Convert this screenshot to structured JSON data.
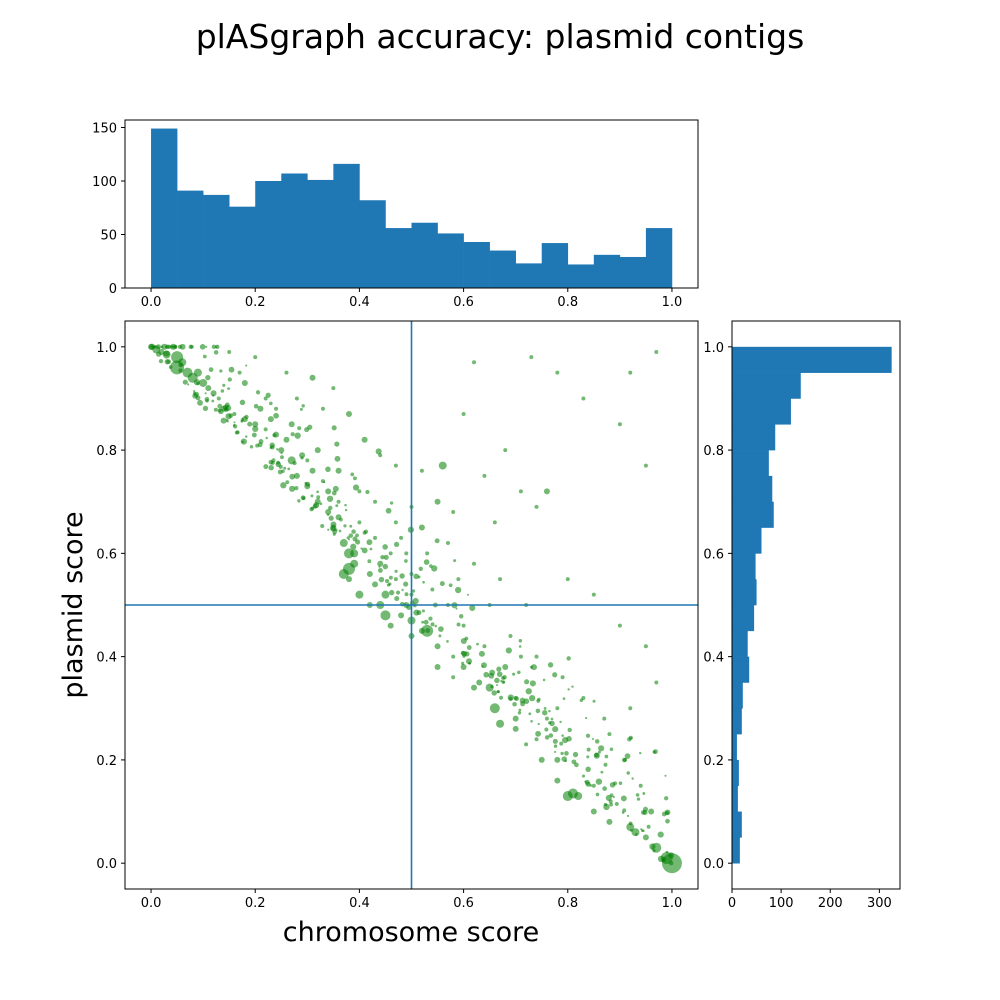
{
  "title": "plASgraph accuracy: plasmid contigs",
  "colors": {
    "hist": "#1f77b4",
    "scatter": "#008000",
    "threshold": "#1f77b4"
  },
  "chart_data": [
    {
      "type": "bar",
      "name": "chromosome-score-histogram",
      "bin_edges": [
        0.0,
        0.05,
        0.1,
        0.15,
        0.2,
        0.25,
        0.3,
        0.35,
        0.4,
        0.45,
        0.5,
        0.55,
        0.6,
        0.65,
        0.7,
        0.75,
        0.8,
        0.85,
        0.9,
        0.95,
        1.0
      ],
      "values": [
        149,
        91,
        87,
        76,
        100,
        107,
        101,
        116,
        82,
        56,
        61,
        51,
        43,
        35,
        23,
        42,
        22,
        31,
        29,
        56
      ],
      "xlim": [
        -0.05,
        1.05
      ],
      "ylim": [
        0,
        157
      ],
      "x_ticks": [
        0.0,
        0.2,
        0.4,
        0.6,
        0.8,
        1.0
      ],
      "x_tick_labels": [
        "0.0",
        "0.2",
        "0.4",
        "0.6",
        "0.8",
        "1.0"
      ],
      "y_ticks": [
        0,
        50,
        100,
        150
      ],
      "y_tick_labels": [
        "0",
        "50",
        "100",
        "150"
      ]
    },
    {
      "type": "scatter",
      "name": "score-scatter",
      "xlabel": "chromosome score",
      "ylabel": "plasmid score",
      "xlim": [
        -0.05,
        1.05
      ],
      "ylim": [
        -0.05,
        1.05
      ],
      "x_ticks": [
        0.0,
        0.2,
        0.4,
        0.6,
        0.8,
        1.0
      ],
      "x_tick_labels": [
        "0.0",
        "0.2",
        "0.4",
        "0.6",
        "0.8",
        "1.0"
      ],
      "y_ticks": [
        0.0,
        0.2,
        0.4,
        0.6,
        0.8,
        1.0
      ],
      "y_tick_labels": [
        "0.0",
        "0.2",
        "0.4",
        "0.6",
        "0.8",
        "1.0"
      ],
      "threshold_x": 0.5,
      "threshold_y": 0.5,
      "points": [
        [
          0.0,
          1.0,
          3
        ],
        [
          0.01,
          0.995,
          4
        ],
        [
          0.02,
          0.99,
          3
        ],
        [
          0.03,
          0.985,
          4
        ],
        [
          0.05,
          0.98,
          6
        ],
        [
          0.06,
          0.97,
          4
        ],
        [
          0.05,
          0.96,
          7
        ],
        [
          0.07,
          0.95,
          5
        ],
        [
          0.09,
          0.95,
          4
        ],
        [
          0.08,
          0.94,
          5
        ],
        [
          0.1,
          0.93,
          4
        ],
        [
          0.11,
          0.92,
          3
        ],
        [
          0.12,
          0.91,
          3
        ],
        [
          0.13,
          0.9,
          2
        ],
        [
          0.14,
          0.88,
          3
        ],
        [
          0.16,
          0.87,
          2
        ],
        [
          0.18,
          0.86,
          3
        ],
        [
          0.2,
          0.85,
          3
        ],
        [
          0.22,
          0.84,
          2
        ],
        [
          0.24,
          0.83,
          3
        ],
        [
          0.25,
          0.8,
          3
        ],
        [
          0.27,
          0.78,
          4
        ],
        [
          0.28,
          0.75,
          3
        ],
        [
          0.3,
          0.73,
          3
        ],
        [
          0.32,
          0.7,
          3
        ],
        [
          0.34,
          0.68,
          3
        ],
        [
          0.35,
          0.65,
          3
        ],
        [
          0.37,
          0.62,
          4
        ],
        [
          0.38,
          0.6,
          5
        ],
        [
          0.39,
          0.58,
          4
        ],
        [
          0.37,
          0.56,
          5
        ],
        [
          0.38,
          0.57,
          6
        ],
        [
          0.39,
          0.6,
          4
        ],
        [
          0.42,
          0.56,
          3
        ],
        [
          0.43,
          0.54,
          3
        ],
        [
          0.45,
          0.52,
          4
        ],
        [
          0.44,
          0.5,
          4
        ],
        [
          0.45,
          0.48,
          5
        ],
        [
          0.46,
          0.46,
          3
        ],
        [
          0.48,
          0.48,
          3
        ],
        [
          0.5,
          0.44,
          3
        ],
        [
          0.52,
          0.45,
          3
        ],
        [
          0.53,
          0.45,
          6
        ],
        [
          0.55,
          0.42,
          3
        ],
        [
          0.58,
          0.4,
          2
        ],
        [
          0.6,
          0.38,
          3
        ],
        [
          0.63,
          0.35,
          3
        ],
        [
          0.65,
          0.34,
          4
        ],
        [
          0.66,
          0.3,
          5
        ],
        [
          0.67,
          0.27,
          4
        ],
        [
          0.7,
          0.26,
          3
        ],
        [
          0.72,
          0.23,
          2
        ],
        [
          0.75,
          0.2,
          3
        ],
        [
          0.78,
          0.16,
          3
        ],
        [
          0.8,
          0.13,
          5
        ],
        [
          0.81,
          0.135,
          5
        ],
        [
          0.82,
          0.13,
          4
        ],
        [
          0.85,
          0.1,
          3
        ],
        [
          0.88,
          0.08,
          3
        ],
        [
          0.92,
          0.07,
          4
        ],
        [
          0.93,
          0.06,
          4
        ],
        [
          0.95,
          0.05,
          3
        ],
        [
          0.97,
          0.03,
          5
        ],
        [
          0.99,
          0.01,
          6
        ],
        [
          1.0,
          0.0,
          10
        ],
        [
          0.15,
          0.99,
          2
        ],
        [
          0.2,
          0.98,
          2
        ],
        [
          0.26,
          0.95,
          2
        ],
        [
          0.31,
          0.94,
          3
        ],
        [
          0.35,
          0.92,
          2
        ],
        [
          0.28,
          0.9,
          2
        ],
        [
          0.33,
          0.88,
          2
        ],
        [
          0.38,
          0.87,
          3
        ],
        [
          0.41,
          0.82,
          3
        ],
        [
          0.44,
          0.79,
          2
        ],
        [
          0.47,
          0.77,
          2
        ],
        [
          0.52,
          0.76,
          2
        ],
        [
          0.56,
          0.77,
          4
        ],
        [
          0.6,
          0.87,
          2
        ],
        [
          0.62,
          0.97,
          2
        ],
        [
          0.73,
          0.98,
          2
        ],
        [
          0.78,
          0.95,
          2
        ],
        [
          0.83,
          0.9,
          2
        ],
        [
          0.9,
          0.85,
          2
        ],
        [
          0.95,
          0.77,
          2
        ],
        [
          0.92,
          0.95,
          2
        ],
        [
          0.97,
          0.99,
          2
        ],
        [
          0.68,
          0.8,
          2
        ],
        [
          0.64,
          0.75,
          2
        ],
        [
          0.71,
          0.72,
          2
        ],
        [
          0.76,
          0.72,
          3
        ],
        [
          0.74,
          0.69,
          2
        ],
        [
          0.66,
          0.66,
          2
        ],
        [
          0.58,
          0.68,
          2
        ],
        [
          0.55,
          0.7,
          3
        ],
        [
          0.5,
          0.69,
          2
        ],
        [
          0.52,
          0.65,
          3
        ],
        [
          0.48,
          0.63,
          2
        ],
        [
          0.57,
          0.62,
          2
        ],
        [
          0.62,
          0.58,
          2
        ],
        [
          0.67,
          0.55,
          2
        ],
        [
          0.72,
          0.5,
          2
        ],
        [
          0.8,
          0.55,
          2
        ],
        [
          0.85,
          0.52,
          2
        ],
        [
          0.9,
          0.46,
          2
        ],
        [
          0.95,
          0.42,
          2
        ],
        [
          0.97,
          0.35,
          2
        ],
        [
          0.92,
          0.3,
          2
        ],
        [
          0.88,
          0.25,
          2
        ],
        [
          0.84,
          0.22,
          2
        ],
        [
          0.78,
          0.3,
          2
        ],
        [
          0.76,
          0.28,
          2
        ],
        [
          0.7,
          0.32,
          2
        ],
        [
          0.68,
          0.38,
          3
        ],
        [
          0.64,
          0.42,
          2
        ],
        [
          0.6,
          0.46,
          2
        ],
        [
          0.57,
          0.5,
          2
        ],
        [
          0.54,
          0.53,
          2
        ],
        [
          0.5,
          0.56,
          2
        ],
        [
          0.46,
          0.6,
          2
        ],
        [
          0.43,
          0.63,
          2
        ],
        [
          0.4,
          0.66,
          2
        ],
        [
          0.36,
          0.7,
          2
        ],
        [
          0.33,
          0.74,
          2
        ],
        [
          0.3,
          0.78,
          2
        ],
        [
          0.22,
          0.9,
          2
        ],
        [
          0.17,
          0.95,
          2
        ],
        [
          0.24,
          0.88,
          2
        ],
        [
          0.27,
          0.85,
          3
        ],
        [
          0.32,
          0.8,
          3
        ],
        [
          0.36,
          0.76,
          3
        ],
        [
          0.4,
          0.72,
          2
        ],
        [
          0.43,
          0.7,
          2
        ],
        [
          0.47,
          0.66,
          2
        ],
        [
          0.53,
          0.6,
          2
        ],
        [
          0.59,
          0.55,
          2
        ],
        [
          0.65,
          0.5,
          2
        ],
        [
          0.69,
          0.44,
          2
        ],
        [
          0.74,
          0.4,
          2
        ],
        [
          0.79,
          0.36,
          2
        ],
        [
          0.83,
          0.32,
          2
        ],
        [
          0.87,
          0.28,
          2
        ],
        [
          0.91,
          0.2,
          2
        ],
        [
          0.94,
          0.15,
          2
        ],
        [
          0.96,
          0.1,
          3
        ],
        [
          0.85,
          0.15,
          2
        ],
        [
          0.78,
          0.2,
          3
        ],
        [
          0.74,
          0.24,
          2
        ],
        [
          0.7,
          0.28,
          3
        ],
        [
          0.62,
          0.34,
          3
        ],
        [
          0.58,
          0.36,
          2
        ],
        [
          0.55,
          0.38,
          3
        ],
        [
          0.49,
          0.5,
          3
        ],
        [
          0.5,
          0.47,
          4
        ],
        [
          0.5,
          0.52,
          2
        ],
        [
          0.18,
          0.93,
          3
        ],
        [
          0.21,
          0.88,
          3
        ],
        [
          0.23,
          0.86,
          3
        ],
        [
          0.26,
          0.82,
          3
        ],
        [
          0.29,
          0.79,
          3
        ],
        [
          0.31,
          0.76,
          3
        ],
        [
          0.34,
          0.72,
          3
        ],
        [
          0.36,
          0.67,
          3
        ],
        [
          0.41,
          0.64,
          2
        ],
        [
          0.44,
          0.58,
          3
        ],
        [
          0.47,
          0.55,
          2
        ],
        [
          0.49,
          0.6,
          2
        ],
        [
          0.4,
          0.52,
          4
        ],
        [
          0.42,
          0.5,
          3
        ],
        [
          0.38,
          0.55,
          3
        ]
      ]
    },
    {
      "type": "bar",
      "orientation": "horizontal",
      "name": "plasmid-score-histogram",
      "bin_edges": [
        0.0,
        0.05,
        0.1,
        0.15,
        0.2,
        0.25,
        0.3,
        0.35,
        0.4,
        0.45,
        0.5,
        0.55,
        0.6,
        0.65,
        0.7,
        0.75,
        0.8,
        0.85,
        0.9,
        0.95,
        1.0
      ],
      "values": [
        16,
        20,
        12,
        14,
        10,
        20,
        22,
        35,
        32,
        45,
        50,
        48,
        60,
        85,
        82,
        75,
        88,
        120,
        140,
        325
      ],
      "xlim": [
        0,
        342
      ],
      "ylim": [
        -0.05,
        1.05
      ],
      "x_ticks": [
        0,
        100,
        200,
        300
      ],
      "x_tick_labels": [
        "0",
        "100",
        "200",
        "300"
      ],
      "y_ticks": [
        0.0,
        0.2,
        0.4,
        0.6,
        0.8,
        1.0
      ],
      "y_tick_labels": [
        "0.0",
        "0.2",
        "0.4",
        "0.6",
        "0.8",
        "1.0"
      ]
    }
  ]
}
